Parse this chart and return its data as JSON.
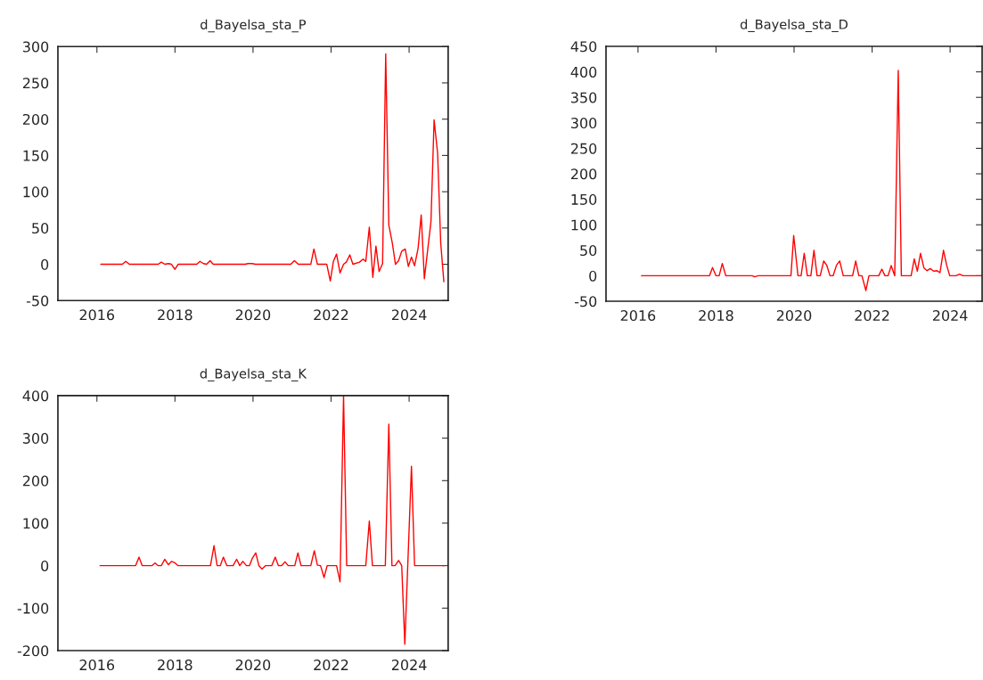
{
  "chart_data": [
    {
      "type": "line",
      "title": "d_Bayelsa_sta_P",
      "xlim": [
        2015,
        2025
      ],
      "xticks": [
        2016,
        2018,
        2020,
        2022,
        2024
      ],
      "ylim": [
        -50,
        300
      ],
      "yticks": [
        -50,
        0,
        50,
        100,
        150,
        200,
        250,
        300
      ],
      "grid": false,
      "series": [
        {
          "color": "#ff0000",
          "x": [
            2016.1,
            2016.65,
            2016.74,
            2016.83,
            2017.57,
            2017.65,
            2017.74,
            2017.83,
            2017.91,
            2018.0,
            2018.08,
            2018.56,
            2018.64,
            2018.73,
            2018.81,
            2018.9,
            2018.98,
            2019.8,
            2019.87,
            2019.98,
            2020.06,
            2020.97,
            2021.06,
            2021.16,
            2021.48,
            2021.56,
            2021.65,
            2021.89,
            2021.98,
            2022.06,
            2022.14,
            2022.23,
            2022.32,
            2022.39,
            2022.48,
            2022.56,
            2022.73,
            2022.82,
            2022.89,
            2022.98,
            2023.07,
            2023.15,
            2023.23,
            2023.32,
            2023.4,
            2023.48,
            2023.57,
            2023.65,
            2023.73,
            2023.81,
            2023.9,
            2023.98,
            2024.06,
            2024.14,
            2024.23,
            2024.31,
            2024.39,
            2024.56,
            2024.64,
            2024.73,
            2024.81,
            2024.89
          ],
          "values": [
            0,
            0,
            4,
            0,
            0,
            3,
            0,
            1,
            0,
            -7,
            0,
            0,
            4,
            1,
            0,
            5,
            0,
            0,
            1,
            1,
            0,
            0,
            5,
            0,
            0,
            21,
            0,
            0,
            -23,
            4,
            14,
            -12,
            0,
            3,
            13,
            0,
            3,
            7,
            4,
            51,
            -18,
            25,
            -10,
            1,
            290,
            54,
            29,
            0,
            5,
            18,
            21,
            -3,
            10,
            -2,
            22,
            68,
            -20,
            59,
            199,
            153,
            29,
            -24
          ]
        }
      ]
    },
    {
      "type": "line",
      "title": "d_Bayelsa_sta_D",
      "xlim": [
        2015.18,
        2024.82
      ],
      "xticks": [
        2016,
        2018,
        2020,
        2022,
        2024
      ],
      "ylim": [
        -50,
        450
      ],
      "yticks": [
        -50,
        0,
        50,
        100,
        150,
        200,
        250,
        300,
        350,
        400,
        450
      ],
      "grid": false,
      "series": [
        {
          "color": "#ff0000",
          "x": [
            2016.09,
            2017.83,
            2017.91,
            2018.0,
            2018.08,
            2018.16,
            2018.25,
            2018.93,
            2018.99,
            2019.08,
            2019.92,
            2019.99,
            2020.1,
            2020.18,
            2020.26,
            2020.34,
            2020.43,
            2020.51,
            2020.59,
            2020.67,
            2020.76,
            2020.84,
            2020.92,
            2021.0,
            2021.09,
            2021.17,
            2021.26,
            2021.5,
            2021.58,
            2021.66,
            2021.74,
            2021.84,
            2021.92,
            2022.17,
            2022.25,
            2022.33,
            2022.41,
            2022.49,
            2022.58,
            2022.67,
            2022.75,
            2023.0,
            2023.08,
            2023.16,
            2023.24,
            2023.33,
            2023.41,
            2023.49,
            2023.58,
            2023.66,
            2023.74,
            2023.83,
            2023.91,
            2023.99,
            2024.15,
            2024.24,
            2024.33,
            2024.81
          ],
          "values": [
            0,
            0,
            16,
            0,
            0,
            24,
            0,
            0,
            -2,
            0,
            0,
            79,
            0,
            0,
            44,
            0,
            0,
            50,
            0,
            0,
            29,
            20,
            0,
            0,
            21,
            29,
            0,
            0,
            29,
            0,
            0,
            -29,
            0,
            0,
            13,
            0,
            0,
            20,
            0,
            403,
            0,
            0,
            33,
            9,
            44,
            15,
            10,
            14,
            9,
            10,
            6,
            50,
            21,
            0,
            0,
            3,
            0,
            0
          ]
        }
      ]
    },
    {
      "type": "line",
      "title": "d_Bayelsa_sta_K",
      "xlim": [
        2015,
        2025
      ],
      "xticks": [
        2016,
        2018,
        2020,
        2022,
        2024
      ],
      "ylim": [
        -200,
        400
      ],
      "yticks": [
        -200,
        -100,
        0,
        100,
        200,
        300,
        400
      ],
      "grid": false,
      "series": [
        {
          "color": "#ff0000",
          "x": [
            2016.08,
            2016.99,
            2017.08,
            2017.16,
            2017.41,
            2017.49,
            2017.57,
            2017.65,
            2017.74,
            2017.83,
            2017.91,
            2017.99,
            2018.08,
            2018.91,
            2019.0,
            2019.08,
            2019.16,
            2019.24,
            2019.33,
            2019.49,
            2019.58,
            2019.66,
            2019.74,
            2019.83,
            2019.91,
            2019.98,
            2020.07,
            2020.15,
            2020.23,
            2020.32,
            2020.48,
            2020.57,
            2020.65,
            2020.73,
            2020.82,
            2020.9,
            2021.07,
            2021.15,
            2021.23,
            2021.48,
            2021.57,
            2021.65,
            2021.73,
            2021.82,
            2021.9,
            2022.14,
            2022.23,
            2022.32,
            2022.4,
            2022.89,
            2022.98,
            2023.06,
            2023.39,
            2023.48,
            2023.56,
            2023.64,
            2023.73,
            2023.81,
            2023.89,
            2024.06,
            2024.14,
            2024.64,
            2024.9
          ],
          "values": [
            0,
            0,
            20,
            0,
            0,
            6,
            0,
            0,
            15,
            2,
            10,
            7,
            0,
            0,
            47,
            0,
            0,
            20,
            0,
            0,
            15,
            0,
            10,
            0,
            0,
            17,
            30,
            0,
            -8,
            0,
            0,
            20,
            0,
            0,
            9,
            0,
            0,
            30,
            0,
            0,
            35,
            1,
            0,
            -28,
            0,
            0,
            -38,
            400,
            0,
            0,
            105,
            0,
            0,
            333,
            0,
            0,
            12,
            0,
            -185,
            234,
            0,
            0,
            0
          ]
        }
      ]
    }
  ]
}
